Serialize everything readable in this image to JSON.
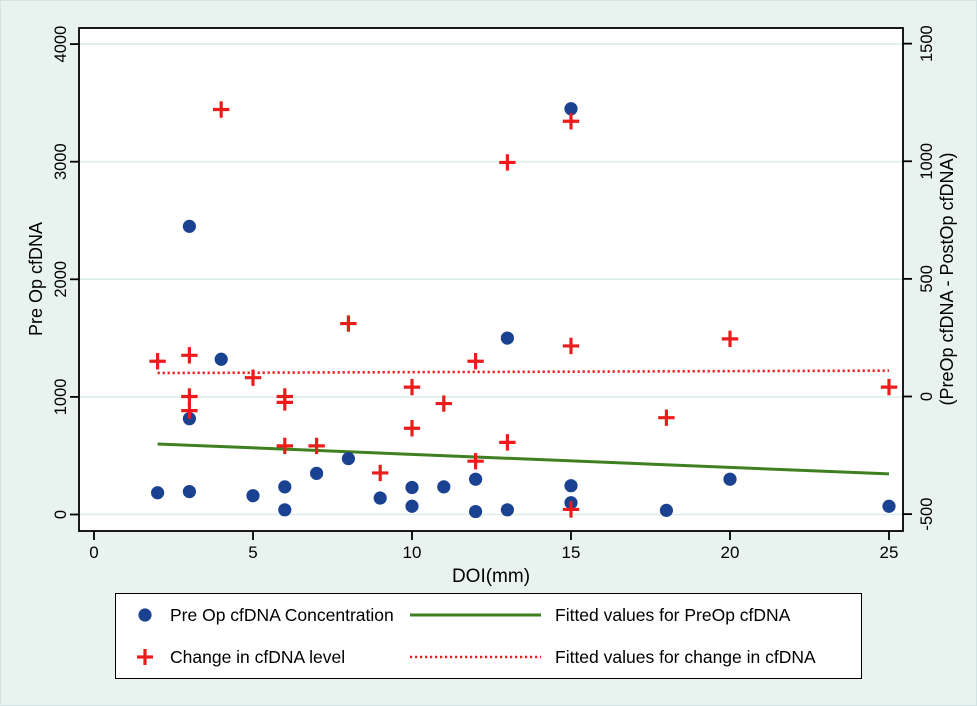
{
  "colors": {
    "figure_background": "#e8f3ef",
    "plot_background": "#ffffff",
    "grid": "#d9efe9",
    "axis": "#000000",
    "preop_marker": "#1b4191",
    "change_marker": "#ed1c1c",
    "fit_preop_line": "#3e801f",
    "fit_change_line": "#ed1c1c"
  },
  "axes": {
    "x": {
      "title": "DOI(mm)",
      "ticks": [
        0,
        5,
        10,
        15,
        20,
        25
      ],
      "range": [
        -0.5,
        25.5
      ]
    },
    "y_left": {
      "title": "Pre Op cfDNA",
      "ticks": [
        0,
        1000,
        2000,
        3000,
        4000
      ],
      "range": [
        -130,
        4150
      ]
    },
    "y_right": {
      "title": "(PreOp cfDNA - PostOp cfDNA)",
      "ticks": [
        -500,
        0,
        500,
        1000,
        1500
      ],
      "range": [
        -565,
        1575
      ]
    }
  },
  "chart_data": {
    "type": "scatter",
    "xlabel": "DOI(mm)",
    "ylabel_left": "Pre Op cfDNA",
    "ylabel_right": "(PreOp cfDNA - PostOp cfDNA)",
    "grid": "horizontal",
    "legend_position": "bottom",
    "series": [
      {
        "name": "Pre Op cfDNA Concentration",
        "kind": "scatter",
        "marker": "circle",
        "axis": "left",
        "color": "#1b4191",
        "points": [
          [
            2,
            185
          ],
          [
            3,
            2450
          ],
          [
            3,
            815
          ],
          [
            3,
            195
          ],
          [
            4,
            1320
          ],
          [
            5,
            160
          ],
          [
            6,
            235
          ],
          [
            6,
            40
          ],
          [
            7,
            350
          ],
          [
            8,
            475
          ],
          [
            9,
            140
          ],
          [
            10,
            230
          ],
          [
            10,
            70
          ],
          [
            11,
            235
          ],
          [
            12,
            300
          ],
          [
            12,
            25
          ],
          [
            13,
            1500
          ],
          [
            13,
            40
          ],
          [
            15,
            3450
          ],
          [
            15,
            245
          ],
          [
            15,
            100
          ],
          [
            18,
            35
          ],
          [
            20,
            300
          ],
          [
            25,
            70
          ]
        ]
      },
      {
        "name": "Change in cfDNA level",
        "kind": "scatter",
        "marker": "plus",
        "axis": "right",
        "color": "#ed1c1c",
        "points": [
          [
            2,
            150
          ],
          [
            3,
            175
          ],
          [
            3,
            0
          ],
          [
            3,
            -60
          ],
          [
            4,
            1220
          ],
          [
            5,
            80
          ],
          [
            6,
            0
          ],
          [
            6,
            -25
          ],
          [
            6,
            -210
          ],
          [
            7,
            -210
          ],
          [
            8,
            310
          ],
          [
            9,
            -325
          ],
          [
            10,
            40
          ],
          [
            10,
            -135
          ],
          [
            11,
            -30
          ],
          [
            12,
            150
          ],
          [
            12,
            -275
          ],
          [
            13,
            995
          ],
          [
            13,
            -195
          ],
          [
            15,
            1170
          ],
          [
            15,
            215
          ],
          [
            15,
            -480
          ],
          [
            18,
            -90
          ],
          [
            20,
            245
          ],
          [
            25,
            40
          ]
        ]
      },
      {
        "name": "Fitted values for PreOp cfDNA",
        "kind": "line",
        "style": "solid",
        "axis": "left",
        "color": "#3e801f",
        "points": [
          [
            2,
            600
          ],
          [
            25,
            345
          ]
        ]
      },
      {
        "name": "Fitted values for change in cfDNA",
        "kind": "line",
        "style": "dotted",
        "axis": "right",
        "color": "#ed1c1c",
        "points": [
          [
            2,
            100
          ],
          [
            25,
            110
          ]
        ]
      }
    ]
  },
  "legend": {
    "items": [
      {
        "label": "Pre Op cfDNA Concentration",
        "swatch": "circle",
        "color": "#1b4191"
      },
      {
        "label": "Change in cfDNA level",
        "swatch": "plus",
        "color": "#ed1c1c"
      },
      {
        "label": "Fitted values for PreOp cfDNA",
        "swatch": "line-solid",
        "color": "#3e801f"
      },
      {
        "label": "Fitted values for change in cfDNA",
        "swatch": "line-dotted",
        "color": "#ed1c1c"
      }
    ]
  }
}
